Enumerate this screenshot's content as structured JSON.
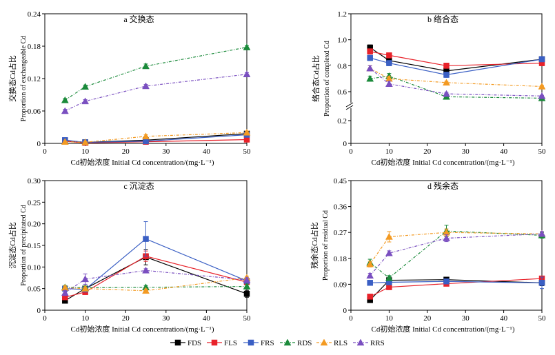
{
  "x_ticks": [
    0,
    10,
    20,
    30,
    40,
    50
  ],
  "legend_order": [
    "FDS",
    "FLS",
    "FRS",
    "RDS",
    "RLS",
    "RRS"
  ],
  "series_style": {
    "FDS": {
      "color": "#000000",
      "marker": "square",
      "dash": "solid"
    },
    "FLS": {
      "color": "#e8222a",
      "marker": "square",
      "dash": "solid"
    },
    "FRS": {
      "color": "#3a5fc4",
      "marker": "square",
      "dash": "solid"
    },
    "RDS": {
      "color": "#1a8a3a",
      "marker": "triangle",
      "dash": "dashdot"
    },
    "RLS": {
      "color": "#f39a22",
      "marker": "triangle",
      "dash": "dashdot"
    },
    "RRS": {
      "color": "#7a4fc0",
      "marker": "triangle",
      "dash": "dashdot"
    }
  },
  "chart_data": [
    {
      "type": "line",
      "title": "a 交换态",
      "xlabel": "Cd初始浓度 Initial Cd concentration/(mg·L⁻¹)",
      "ylabel_cn": "交换态Cd占比",
      "ylabel_en": "Proportion of exchangeable Cd",
      "x": [
        5,
        10,
        25,
        50
      ],
      "xlim": [
        0,
        50
      ],
      "ylim": [
        0,
        0.24
      ],
      "yticks": [
        "0",
        "0.06",
        "0.12",
        "0.18",
        "0.24"
      ],
      "ytick_values": [
        0,
        0.06,
        0.12,
        0.18,
        0.24
      ],
      "series": [
        {
          "name": "FDS",
          "values": [
            0.005,
            0.002,
            0.006,
            0.018
          ],
          "err": [
            0.003,
            0.001,
            0.002,
            0.004
          ]
        },
        {
          "name": "FLS",
          "values": [
            0.004,
            0.001,
            0.003,
            0.007
          ],
          "err": [
            0.002,
            0.001,
            0.001,
            0.002
          ]
        },
        {
          "name": "FRS",
          "values": [
            0.006,
            0.002,
            0.004,
            0.016
          ],
          "err": [
            0.002,
            0.001,
            0.001,
            0.003
          ]
        },
        {
          "name": "RDS",
          "values": [
            0.08,
            0.105,
            0.143,
            0.178
          ],
          "err": [
            0.003,
            0.003,
            0.004,
            0.003
          ]
        },
        {
          "name": "RLS",
          "values": [
            0.003,
            0.002,
            0.013,
            0.02
          ],
          "err": [
            0.001,
            0.001,
            0.003,
            0.003
          ]
        },
        {
          "name": "RRS",
          "values": [
            0.06,
            0.078,
            0.106,
            0.128
          ],
          "err": [
            0.003,
            0.003,
            0.003,
            0.003
          ]
        }
      ]
    },
    {
      "type": "line",
      "title": "b 络合态",
      "xlabel": "Cd初始浓度 Initial Cd concentration/(mg·L⁻¹)",
      "ylabel_cn": "络合态Cd占比",
      "ylabel_en": "Proportion of complexd Cd",
      "x": [
        5,
        10,
        25,
        50
      ],
      "xlim": [
        0,
        50
      ],
      "ylim": [
        0,
        1.2
      ],
      "axis_break": true,
      "yticks": [
        "0",
        "0.2",
        "0.6",
        "0.8",
        "1.0",
        "1.2"
      ],
      "ytick_values": [
        0,
        0.2,
        0.6,
        0.8,
        1.0,
        1.2
      ],
      "series": [
        {
          "name": "FDS",
          "values": [
            0.94,
            0.84,
            0.76,
            0.85
          ],
          "err": [
            0.02,
            0.02,
            0.03,
            0.02
          ]
        },
        {
          "name": "FLS",
          "values": [
            0.91,
            0.88,
            0.8,
            0.82
          ],
          "err": [
            0.02,
            0.02,
            0.02,
            0.02
          ]
        },
        {
          "name": "FRS",
          "values": [
            0.86,
            0.82,
            0.73,
            0.85
          ],
          "err": [
            0.02,
            0.02,
            0.02,
            0.02
          ]
        },
        {
          "name": "RDS",
          "values": [
            0.7,
            0.72,
            0.53,
            0.51
          ],
          "err": [
            0.02,
            0.02,
            0.02,
            0.01
          ]
        },
        {
          "name": "RLS",
          "values": [
            0.78,
            0.7,
            0.67,
            0.64
          ],
          "err": [
            0.02,
            0.02,
            0.01,
            0.01
          ]
        },
        {
          "name": "RRS",
          "values": [
            0.78,
            0.66,
            0.57,
            0.54
          ],
          "err": [
            0.02,
            0.02,
            0.02,
            0.01
          ]
        }
      ]
    },
    {
      "type": "line",
      "title": "c 沉淀态",
      "xlabel": "Cd初始浓度 Initial Cd concentration/(mg·L⁻¹)",
      "ylabel_cn": "沉淀态Cd占比",
      "ylabel_en": "Proportion of precipitated Cd",
      "x": [
        5,
        10,
        25,
        50
      ],
      "xlim": [
        0,
        50
      ],
      "ylim": [
        0,
        0.3
      ],
      "yticks": [
        "0",
        "0.05",
        "0.10",
        "0.15",
        "0.20",
        "0.25",
        "0.30"
      ],
      "ytick_values": [
        0,
        0.05,
        0.1,
        0.15,
        0.2,
        0.25,
        0.3
      ],
      "series": [
        {
          "name": "FDS",
          "values": [
            0.022,
            0.05,
            0.123,
            0.038
          ],
          "err": [
            0.004,
            0.005,
            0.018,
            0.008
          ]
        },
        {
          "name": "FLS",
          "values": [
            0.03,
            0.042,
            0.125,
            0.065
          ],
          "err": [
            0.004,
            0.004,
            0.012,
            0.006
          ]
        },
        {
          "name": "FRS",
          "values": [
            0.05,
            0.048,
            0.165,
            0.068
          ],
          "err": [
            0.004,
            0.004,
            0.04,
            0.006
          ]
        },
        {
          "name": "RDS",
          "values": [
            0.053,
            0.052,
            0.053,
            0.055
          ],
          "err": [
            0.004,
            0.004,
            0.004,
            0.004
          ]
        },
        {
          "name": "RLS",
          "values": [
            0.052,
            0.05,
            0.045,
            0.075
          ],
          "err": [
            0.004,
            0.004,
            0.004,
            0.004
          ]
        },
        {
          "name": "RRS",
          "values": [
            0.04,
            0.072,
            0.092,
            0.07
          ],
          "err": [
            0.006,
            0.012,
            0.004,
            0.005
          ]
        }
      ]
    },
    {
      "type": "line",
      "title": "d 残余态",
      "xlabel": "Cd初始浓度 Initial Cd concentration/(mg·L⁻¹)",
      "ylabel_cn": "残余态Cd占比",
      "ylabel_en": "Proportion of residual Cd",
      "x": [
        5,
        10,
        25,
        50
      ],
      "xlim": [
        0,
        50
      ],
      "ylim": [
        0,
        0.45
      ],
      "yticks": [
        "0",
        "0.09",
        "0.18",
        "0.27",
        "0.36",
        "0.45"
      ],
      "ytick_values": [
        0,
        0.09,
        0.18,
        0.27,
        0.36,
        0.45
      ],
      "series": [
        {
          "name": "FDS",
          "values": [
            0.035,
            0.104,
            0.106,
            0.095
          ],
          "err": [
            0.006,
            0.006,
            0.006,
            0.01
          ]
        },
        {
          "name": "FLS",
          "values": [
            0.047,
            0.08,
            0.092,
            0.11
          ],
          "err": [
            0.008,
            0.006,
            0.005,
            0.006
          ]
        },
        {
          "name": "FRS",
          "values": [
            0.095,
            0.097,
            0.1,
            0.095
          ],
          "err": [
            0.006,
            0.006,
            0.006,
            0.02
          ]
        },
        {
          "name": "RDS",
          "values": [
            0.165,
            0.112,
            0.275,
            0.26
          ],
          "err": [
            0.012,
            0.008,
            0.02,
            0.01
          ]
        },
        {
          "name": "RLS",
          "values": [
            0.16,
            0.255,
            0.27,
            0.265
          ],
          "err": [
            0.01,
            0.018,
            0.012,
            0.008
          ]
        },
        {
          "name": "RRS",
          "values": [
            0.12,
            0.198,
            0.25,
            0.265
          ],
          "err": [
            0.008,
            0.008,
            0.012,
            0.008
          ]
        }
      ]
    }
  ]
}
